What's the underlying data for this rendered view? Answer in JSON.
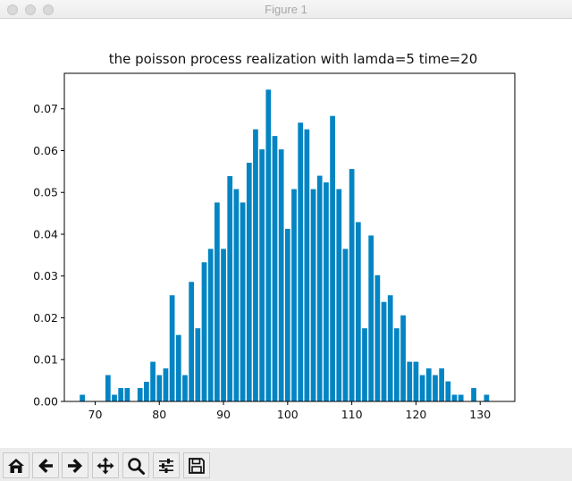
{
  "window": {
    "title": "Figure 1",
    "traffic_lights": [
      "close",
      "minimize",
      "zoom"
    ]
  },
  "toolbar": {
    "buttons": [
      {
        "name": "home",
        "icon": "home-icon",
        "label": "Home"
      },
      {
        "name": "back",
        "icon": "arrow-left-icon",
        "label": "Back"
      },
      {
        "name": "forward",
        "icon": "arrow-right-icon",
        "label": "Forward"
      },
      {
        "name": "pan",
        "icon": "move-icon",
        "label": "Pan"
      },
      {
        "name": "zoom",
        "icon": "magnifier-icon",
        "label": "Zoom"
      },
      {
        "name": "configure",
        "icon": "sliders-icon",
        "label": "Configure subplots"
      },
      {
        "name": "save",
        "icon": "floppy-disk-icon",
        "label": "Save"
      }
    ]
  },
  "chart_data": {
    "type": "bar",
    "title": "the poisson process realization with lamda=5 time=20",
    "xlabel": "",
    "ylabel": "",
    "bar_color": "#0485c3",
    "bar_width": 0.8,
    "xlim": [
      65.2,
      135.4
    ],
    "ylim": [
      0,
      0.0785
    ],
    "xticks": [
      70,
      80,
      90,
      100,
      110,
      120,
      130
    ],
    "xtick_labels": [
      "70",
      "80",
      "90",
      "100",
      "110",
      "120",
      "130"
    ],
    "yticks": [
      0.0,
      0.01,
      0.02,
      0.03,
      0.04,
      0.05,
      0.06,
      0.07
    ],
    "ytick_labels": [
      "0.00",
      "0.01",
      "0.02",
      "0.03",
      "0.04",
      "0.05",
      "0.06",
      "0.07"
    ],
    "grid": false,
    "legend": null,
    "x": [
      68,
      72,
      73,
      74,
      75,
      77,
      78,
      79,
      80,
      81,
      82,
      83,
      84,
      85,
      86,
      87,
      88,
      89,
      90,
      91,
      92,
      93,
      94,
      95,
      96,
      97,
      98,
      99,
      100,
      101,
      102,
      103,
      104,
      105,
      106,
      107,
      108,
      109,
      110,
      111,
      112,
      113,
      114,
      115,
      116,
      117,
      118,
      119,
      120,
      121,
      122,
      123,
      124,
      125,
      126,
      127,
      128,
      129,
      131
    ],
    "values": [
      0.0016,
      0.0063,
      0.0016,
      0.0032,
      0.0032,
      0.0032,
      0.0047,
      0.0095,
      0.0063,
      0.0079,
      0.0254,
      0.0159,
      0.0063,
      0.0286,
      0.0175,
      0.0333,
      0.0365,
      0.0476,
      0.0365,
      0.0539,
      0.0508,
      0.0476,
      0.0571,
      0.0651,
      0.0603,
      0.0746,
      0.0635,
      0.0603,
      0.0413,
      0.0508,
      0.0667,
      0.0651,
      0.0508,
      0.054,
      0.0524,
      0.0683,
      0.0508,
      0.0365,
      0.0556,
      0.0429,
      0.0175,
      0.0397,
      0.0302,
      0.0238,
      0.0254,
      0.0175,
      0.0206,
      0.0095,
      0.0095,
      0.0063,
      0.0079,
      0.0063,
      0.0079,
      0.0048,
      0.0016,
      0.0016,
      0.0,
      0.0032,
      0.0016
    ]
  }
}
